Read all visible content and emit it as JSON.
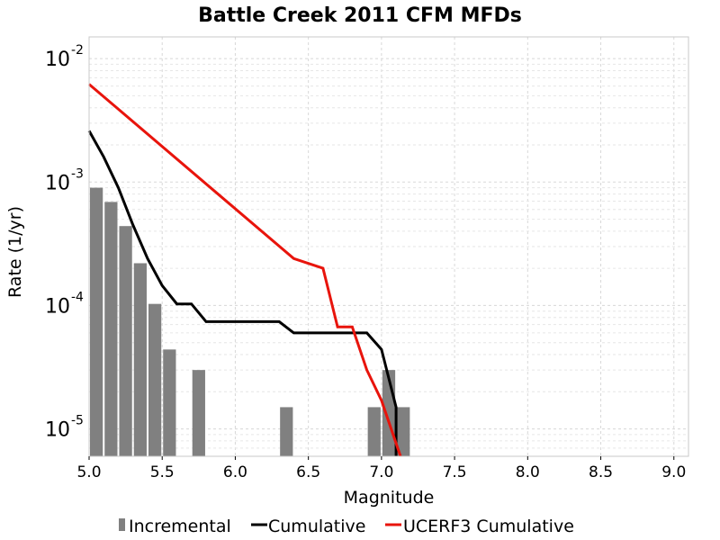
{
  "chart_data": {
    "type": "bar",
    "title": "Battle Creek 2011 CFM MFDs",
    "xlabel": "Magnitude",
    "ylabel": "Rate (1/yr)",
    "xlim": [
      5.0,
      9.1
    ],
    "ylim": [
      6e-06,
      0.015
    ],
    "yscale": "log",
    "grid": true,
    "legend_position": "bottom",
    "xticks": [
      5.0,
      5.5,
      6.0,
      6.5,
      7.0,
      7.5,
      8.0,
      8.5,
      9.0
    ],
    "xtick_labels": [
      "5.0",
      "5.5",
      "6.0",
      "6.5",
      "7.0",
      "7.5",
      "8.0",
      "8.5",
      "9.0"
    ],
    "yticks": [
      {
        "value": 1e-05,
        "base": "10",
        "exp": "-5"
      },
      {
        "value": 0.0001,
        "base": "10",
        "exp": "-4"
      },
      {
        "value": 0.001,
        "base": "10",
        "exp": "-3"
      },
      {
        "value": 0.01,
        "base": "10",
        "exp": "-2"
      }
    ],
    "series": [
      {
        "name": "Incremental",
        "kind": "bar",
        "color": "#808080",
        "bin_width": 0.1,
        "x": [
          5.05,
          5.15,
          5.25,
          5.35,
          5.45,
          5.55,
          5.75,
          6.35,
          6.95,
          7.05,
          7.15
        ],
        "y": [
          0.0009,
          0.00069,
          0.00044,
          0.00022,
          0.000103,
          4.4e-05,
          3e-05,
          1.5e-05,
          1.5e-05,
          3e-05,
          1.5e-05
        ]
      },
      {
        "name": "Cumulative",
        "kind": "line",
        "color": "#000000",
        "x": [
          5.0,
          5.1,
          5.2,
          5.3,
          5.4,
          5.5,
          5.6,
          5.7,
          5.8,
          5.9,
          6.0,
          6.1,
          6.2,
          6.3,
          6.4,
          6.5,
          6.6,
          6.7,
          6.8,
          6.9,
          7.0,
          7.1,
          7.1
        ],
        "y": [
          0.0026,
          0.0016,
          0.0009,
          0.00045,
          0.00024,
          0.000145,
          0.000103,
          0.000103,
          7.4e-05,
          7.4e-05,
          7.4e-05,
          7.4e-05,
          7.4e-05,
          7.4e-05,
          6e-05,
          6e-05,
          6e-05,
          6e-05,
          6e-05,
          6e-05,
          4.4e-05,
          1.5e-05,
          6e-06
        ]
      },
      {
        "name": "UCERF3 Cumulative",
        "kind": "line",
        "color": "#e8140c",
        "x": [
          5.0,
          6.4,
          6.6,
          6.7,
          6.8,
          6.9,
          7.0,
          7.13
        ],
        "y": [
          0.0062,
          0.00024,
          0.0002,
          6.7e-05,
          6.7e-05,
          3e-05,
          1.7e-05,
          6e-06
        ]
      }
    ]
  }
}
